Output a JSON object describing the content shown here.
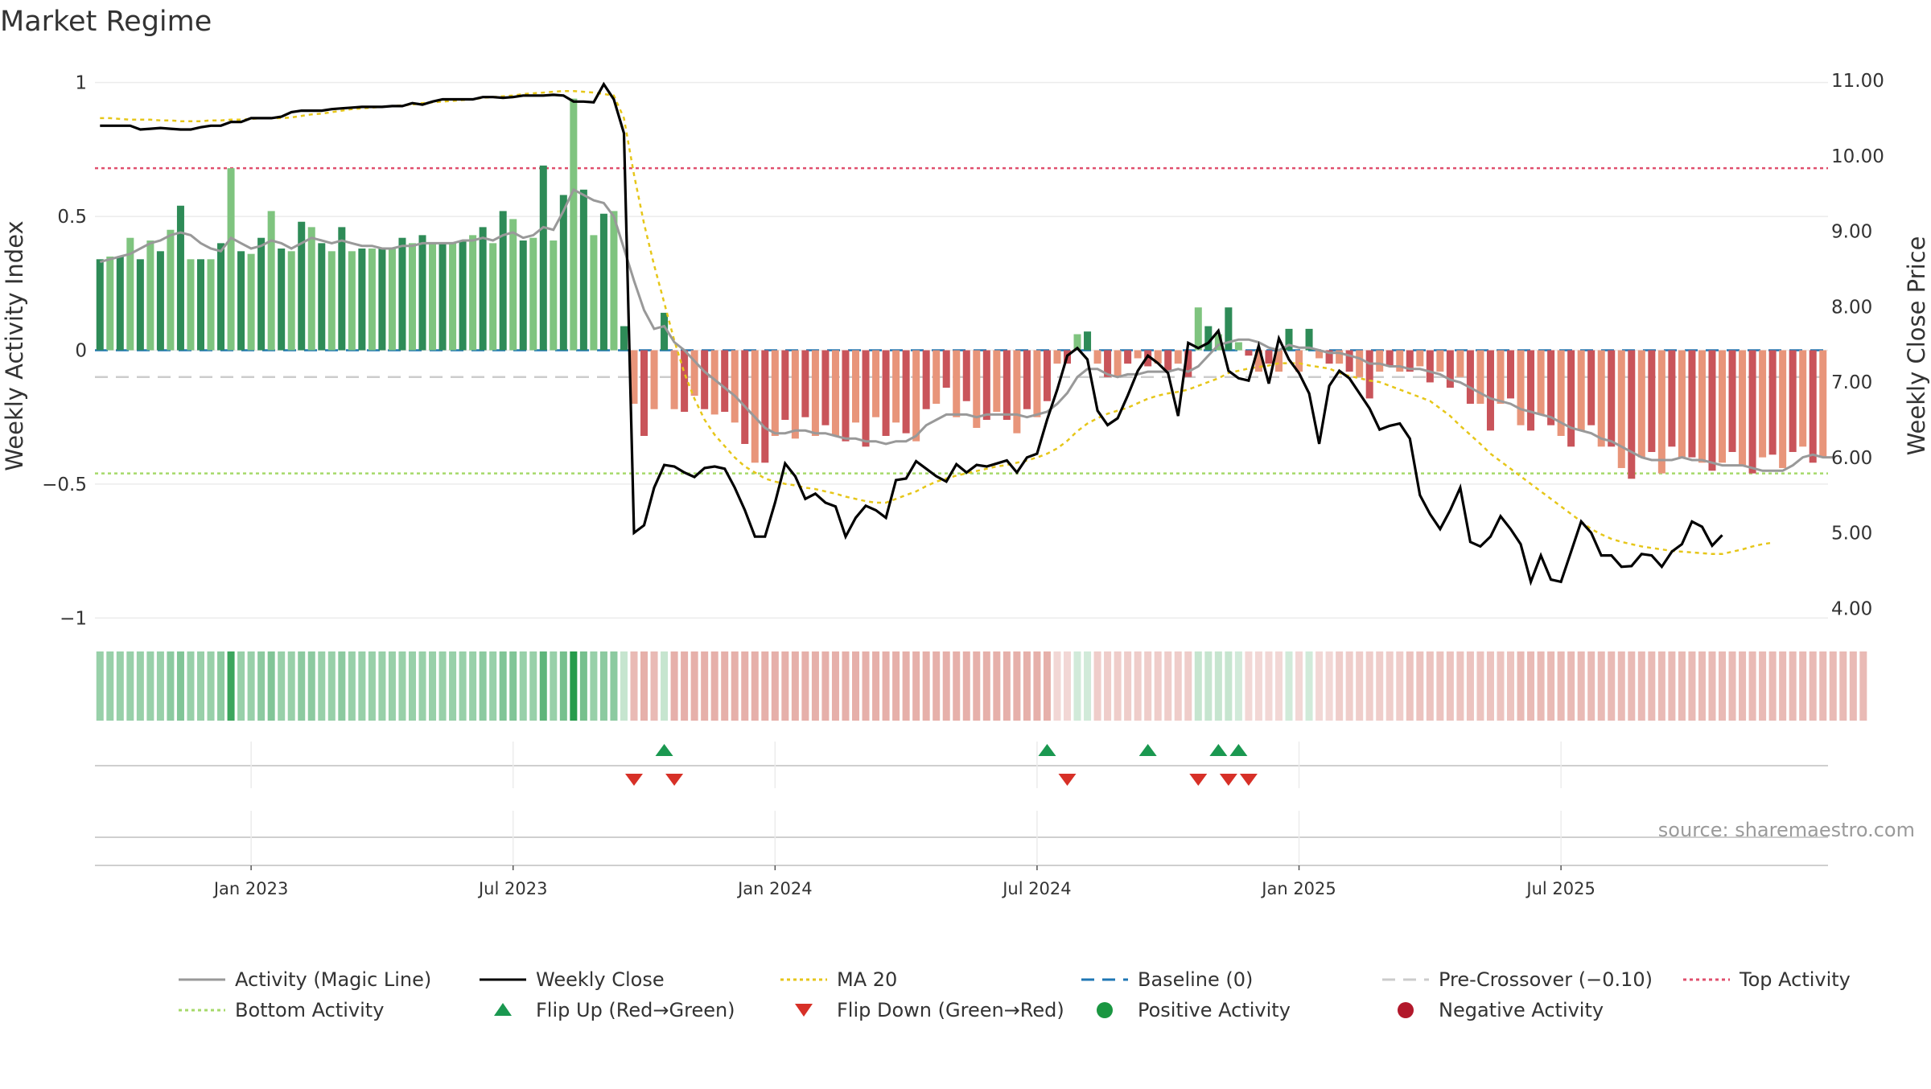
{
  "chart_data": {
    "type": "bar",
    "title": "Market Regime",
    "y_left_label": "Weekly Activity Index",
    "y_right_label": "Weekly Close Price",
    "y_left_ticks": [
      {
        "value": 1,
        "label": "1"
      },
      {
        "value": 0.5,
        "label": "0.5"
      },
      {
        "value": 0,
        "label": "0"
      },
      {
        "value": -0.5,
        "label": "−0.5"
      },
      {
        "value": -1,
        "label": "−1"
      }
    ],
    "y_left_range": [
      -1.02,
      1.05
    ],
    "y_right_ticks": [
      "11.00",
      "10.00",
      "9.00",
      "8.00",
      "7.00",
      "6.00",
      "5.00",
      "4.00"
    ],
    "y_right_range": [
      3.8,
      11.15
    ],
    "x_ticks": [
      {
        "label": "Jan 2023",
        "week": 15
      },
      {
        "label": "Jul 2023",
        "week": 41
      },
      {
        "label": "Jan 2024",
        "week": 67
      },
      {
        "label": "Jul 2024",
        "week": 93
      },
      {
        "label": "Jan 2025",
        "week": 119
      },
      {
        "label": "Jul 2025",
        "week": 145
      }
    ],
    "reference_lines": {
      "top_activity": 0.68,
      "bottom_activity": -0.46,
      "baseline": 0,
      "pre_crossover": -0.1
    },
    "activity": [
      0.34,
      0.35,
      0.35,
      0.42,
      0.34,
      0.41,
      0.37,
      0.45,
      0.54,
      0.34,
      0.34,
      0.34,
      0.4,
      0.68,
      0.37,
      0.36,
      0.42,
      0.52,
      0.38,
      0.37,
      0.48,
      0.46,
      0.4,
      0.37,
      0.46,
      0.37,
      0.38,
      0.38,
      0.38,
      0.38,
      0.42,
      0.4,
      0.43,
      0.4,
      0.4,
      0.4,
      0.41,
      0.43,
      0.46,
      0.4,
      0.52,
      0.49,
      0.41,
      0.42,
      0.69,
      0.41,
      0.58,
      0.94,
      0.6,
      0.43,
      0.51,
      0.52,
      0.09,
      -0.2,
      -0.32,
      -0.22,
      0.14,
      -0.22,
      -0.23,
      -0.17,
      -0.22,
      -0.24,
      -0.23,
      -0.27,
      -0.35,
      -0.42,
      -0.42,
      -0.32,
      -0.26,
      -0.33,
      -0.25,
      -0.32,
      -0.28,
      -0.32,
      -0.34,
      -0.27,
      -0.36,
      -0.25,
      -0.32,
      -0.27,
      -0.31,
      -0.34,
      -0.22,
      -0.2,
      -0.14,
      -0.25,
      -0.19,
      -0.29,
      -0.26,
      -0.23,
      -0.26,
      -0.31,
      -0.22,
      -0.25,
      -0.19,
      -0.05,
      -0.05,
      0.06,
      0.07,
      -0.05,
      -0.1,
      -0.1,
      -0.05,
      -0.03,
      -0.06,
      -0.05,
      -0.08,
      -0.05,
      -0.1,
      0.16,
      0.09,
      0.06,
      0.16,
      0.03,
      -0.02,
      -0.08,
      -0.05,
      -0.08,
      0.08,
      -0.08,
      0.08,
      -0.03,
      -0.05,
      -0.05,
      -0.08,
      -0.1,
      -0.18,
      -0.08,
      -0.06,
      -0.08,
      -0.08,
      -0.06,
      -0.12,
      -0.08,
      -0.14,
      -0.1,
      -0.2,
      -0.2,
      -0.3,
      -0.2,
      -0.18,
      -0.28,
      -0.3,
      -0.24,
      -0.28,
      -0.32,
      -0.36,
      -0.3,
      -0.28,
      -0.36,
      -0.36,
      -0.44,
      -0.48,
      -0.4,
      -0.38,
      -0.46,
      -0.36,
      -0.4,
      -0.4,
      -0.42,
      -0.45,
      -0.42,
      -0.38,
      -0.43,
      -0.46,
      -0.4,
      -0.39,
      -0.44,
      -0.38,
      -0.36,
      -0.42,
      -0.4
    ],
    "activity_line": [
      0.33,
      0.34,
      0.35,
      0.36,
      0.38,
      0.4,
      0.41,
      0.43,
      0.44,
      0.43,
      0.4,
      0.38,
      0.37,
      0.42,
      0.4,
      0.38,
      0.39,
      0.41,
      0.4,
      0.38,
      0.4,
      0.42,
      0.41,
      0.4,
      0.41,
      0.4,
      0.39,
      0.39,
      0.38,
      0.38,
      0.39,
      0.39,
      0.4,
      0.4,
      0.4,
      0.4,
      0.41,
      0.41,
      0.42,
      0.41,
      0.43,
      0.44,
      0.42,
      0.43,
      0.46,
      0.45,
      0.52,
      0.6,
      0.58,
      0.56,
      0.55,
      0.5,
      0.38,
      0.26,
      0.15,
      0.08,
      0.09,
      0.03,
      0.0,
      -0.04,
      -0.08,
      -0.11,
      -0.14,
      -0.17,
      -0.21,
      -0.25,
      -0.29,
      -0.31,
      -0.31,
      -0.3,
      -0.3,
      -0.31,
      -0.31,
      -0.32,
      -0.33,
      -0.33,
      -0.34,
      -0.34,
      -0.35,
      -0.34,
      -0.34,
      -0.32,
      -0.28,
      -0.26,
      -0.24,
      -0.24,
      -0.24,
      -0.25,
      -0.24,
      -0.24,
      -0.24,
      -0.24,
      -0.25,
      -0.24,
      -0.23,
      -0.2,
      -0.16,
      -0.1,
      -0.07,
      -0.07,
      -0.09,
      -0.1,
      -0.09,
      -0.09,
      -0.08,
      -0.08,
      -0.08,
      -0.07,
      -0.08,
      -0.06,
      -0.02,
      0.02,
      0.03,
      0.04,
      0.04,
      0.03,
      0.01,
      0.0,
      0.02,
      0.01,
      0.01,
      0.0,
      -0.01,
      -0.01,
      -0.02,
      -0.03,
      -0.05,
      -0.05,
      -0.06,
      -0.06,
      -0.07,
      -0.07,
      -0.08,
      -0.09,
      -0.11,
      -0.12,
      -0.14,
      -0.16,
      -0.18,
      -0.19,
      -0.2,
      -0.22,
      -0.23,
      -0.24,
      -0.25,
      -0.27,
      -0.29,
      -0.3,
      -0.31,
      -0.33,
      -0.34,
      -0.36,
      -0.38,
      -0.4,
      -0.41,
      -0.41,
      -0.41,
      -0.4,
      -0.41,
      -0.41,
      -0.42,
      -0.43,
      -0.43,
      -0.43,
      -0.44,
      -0.45,
      -0.45,
      -0.45,
      -0.43,
      -0.4,
      -0.39,
      -0.4,
      -0.4
    ],
    "weekly_close": [
      10.4,
      10.4,
      10.4,
      10.4,
      10.35,
      10.36,
      10.37,
      10.36,
      10.35,
      10.35,
      10.38,
      10.4,
      10.4,
      10.45,
      10.45,
      10.5,
      10.5,
      10.5,
      10.52,
      10.58,
      10.6,
      10.6,
      10.6,
      10.62,
      10.63,
      10.64,
      10.65,
      10.65,
      10.65,
      10.66,
      10.66,
      10.7,
      10.68,
      10.72,
      10.75,
      10.75,
      10.75,
      10.75,
      10.78,
      10.78,
      10.77,
      10.78,
      10.8,
      10.8,
      10.8,
      10.81,
      10.8,
      10.72,
      10.72,
      10.71,
      10.95,
      10.75,
      10.3,
      5.0,
      5.1,
      5.6,
      5.9,
      5.88,
      5.8,
      5.74,
      5.86,
      5.88,
      5.85,
      5.6,
      5.3,
      4.95,
      4.95,
      5.4,
      5.92,
      5.75,
      5.45,
      5.52,
      5.4,
      5.35,
      4.95,
      5.2,
      5.36,
      5.3,
      5.2,
      5.7,
      5.72,
      5.95,
      5.85,
      5.75,
      5.68,
      5.91,
      5.8,
      5.9,
      5.88,
      5.92,
      5.96,
      5.8,
      6.0,
      6.05,
      6.5,
      6.9,
      7.35,
      7.45,
      7.3,
      6.62,
      6.43,
      6.52,
      6.82,
      7.15,
      7.35,
      7.25,
      7.12,
      6.55,
      7.52,
      7.45,
      7.52,
      7.68,
      7.15,
      7.05,
      7.02,
      7.48,
      6.98,
      7.58,
      7.3,
      7.12,
      6.85,
      6.18,
      6.95,
      7.15,
      7.05,
      6.85,
      6.65,
      6.37,
      6.42,
      6.45,
      6.25,
      5.5,
      5.25,
      5.05,
      5.3,
      5.6,
      4.88,
      4.82,
      4.95,
      5.22,
      5.05,
      4.85,
      4.35,
      4.7,
      4.38,
      4.35,
      4.75,
      5.15,
      5.0,
      4.7,
      4.7,
      4.55,
      4.56,
      4.72,
      4.7,
      4.55,
      4.75,
      4.85,
      5.15,
      5.08,
      4.83,
      4.97
    ],
    "ma20": [
      10.5,
      10.5,
      10.49,
      10.48,
      10.48,
      10.48,
      10.47,
      10.47,
      10.46,
      10.46,
      10.46,
      10.47,
      10.47,
      10.48,
      10.48,
      10.49,
      10.5,
      10.5,
      10.5,
      10.51,
      10.53,
      10.55,
      10.56,
      10.58,
      10.6,
      10.62,
      10.63,
      10.64,
      10.65,
      10.66,
      10.67,
      10.68,
      10.7,
      10.71,
      10.72,
      10.73,
      10.74,
      10.75,
      10.77,
      10.78,
      10.79,
      10.8,
      10.82,
      10.83,
      10.84,
      10.85,
      10.86,
      10.86,
      10.85,
      10.84,
      10.82,
      10.8,
      10.5,
      9.75,
      9.1,
      8.55,
      8.05,
      7.55,
      7.12,
      6.78,
      6.5,
      6.3,
      6.15,
      6.0,
      5.88,
      5.8,
      5.72,
      5.68,
      5.65,
      5.63,
      5.6,
      5.58,
      5.55,
      5.52,
      5.48,
      5.45,
      5.42,
      5.4,
      5.4,
      5.45,
      5.5,
      5.55,
      5.62,
      5.68,
      5.72,
      5.76,
      5.79,
      5.82,
      5.85,
      5.88,
      5.9,
      5.93,
      5.96,
      6.0,
      6.05,
      6.12,
      6.22,
      6.35,
      6.45,
      6.52,
      6.58,
      6.62,
      6.66,
      6.72,
      6.78,
      6.82,
      6.85,
      6.87,
      6.9,
      6.95,
      7.0,
      7.05,
      7.12,
      7.15,
      7.18,
      7.2,
      7.22,
      7.25,
      7.25,
      7.25,
      7.22,
      7.2,
      7.18,
      7.12,
      7.08,
      7.05,
      7.02,
      7.0,
      6.95,
      6.9,
      6.85,
      6.8,
      6.75,
      6.65,
      6.55,
      6.42,
      6.3,
      6.18,
      6.05,
      5.95,
      5.85,
      5.75,
      5.65,
      5.55,
      5.45,
      5.35,
      5.25,
      5.15,
      5.05,
      4.98,
      4.92,
      4.88,
      4.85,
      4.82,
      4.8,
      4.78,
      4.76,
      4.75,
      4.74,
      4.73,
      4.72,
      4.72,
      4.75,
      4.78,
      4.82,
      4.85,
      4.87
    ],
    "regime_strip_intensity": [
      0.45,
      0.45,
      0.45,
      0.45,
      0.45,
      0.45,
      0.45,
      0.5,
      0.55,
      0.45,
      0.45,
      0.45,
      0.5,
      0.85,
      0.45,
      0.45,
      0.5,
      0.55,
      0.45,
      0.45,
      0.5,
      0.5,
      0.45,
      0.45,
      0.5,
      0.45,
      0.45,
      0.45,
      0.45,
      0.45,
      0.45,
      0.45,
      0.45,
      0.45,
      0.45,
      0.45,
      0.45,
      0.45,
      0.5,
      0.45,
      0.55,
      0.55,
      0.45,
      0.45,
      0.7,
      0.45,
      0.6,
      0.95,
      0.6,
      0.45,
      0.5,
      0.5,
      0.25,
      0.35,
      0.4,
      0.35,
      0.25,
      0.4,
      0.4,
      0.4,
      0.4,
      0.4,
      0.4,
      0.4,
      0.4,
      0.4,
      0.4,
      0.4,
      0.4,
      0.4,
      0.4,
      0.4,
      0.4,
      0.4,
      0.4,
      0.4,
      0.4,
      0.4,
      0.4,
      0.4,
      0.4,
      0.4,
      0.4,
      0.4,
      0.4,
      0.4,
      0.4,
      0.4,
      0.4,
      0.4,
      0.4,
      0.4,
      0.4,
      0.4,
      0.4,
      0.2,
      0.2,
      0.2,
      0.2,
      0.25,
      0.25,
      0.25,
      0.25,
      0.25,
      0.25,
      0.25,
      0.25,
      0.25,
      0.25,
      0.25,
      0.25,
      0.25,
      0.25,
      0.2,
      0.2,
      0.2,
      0.2,
      0.2,
      0.2,
      0.2,
      0.2,
      0.2,
      0.2,
      0.25,
      0.25,
      0.25,
      0.25,
      0.25,
      0.25,
      0.25,
      0.3,
      0.3,
      0.3,
      0.3,
      0.3,
      0.3,
      0.3,
      0.3,
      0.3,
      0.3,
      0.3,
      0.35,
      0.35,
      0.35,
      0.35,
      0.35,
      0.35,
      0.35,
      0.35,
      0.35,
      0.35,
      0.35,
      0.35,
      0.35,
      0.35,
      0.35,
      0.35,
      0.35,
      0.35,
      0.35,
      0.35,
      0.35,
      0.35,
      0.35,
      0.35,
      0.35,
      0.35,
      0.35,
      0.35,
      0.35,
      0.35,
      0.35,
      0.35,
      0.35,
      0.35,
      0.35
    ],
    "flip_up_weeks": [
      56,
      94,
      104,
      111,
      113
    ],
    "flip_down_weeks": [
      53,
      57,
      96,
      109,
      112,
      114
    ],
    "legend": [
      {
        "label": "Activity (Magic Line)",
        "style": "solid",
        "color": "#999999"
      },
      {
        "label": "Weekly Close",
        "style": "solid",
        "color": "#000000"
      },
      {
        "label": "MA 20",
        "style": "dotted",
        "color": "#e6c619"
      },
      {
        "label": "Baseline (0)",
        "style": "dashed",
        "color": "#1f77b4"
      },
      {
        "label": "Pre-Crossover (−0.10)",
        "style": "dashed",
        "color": "#cccccc"
      },
      {
        "label": "Top Activity",
        "style": "dotted",
        "color": "#e0506e"
      },
      {
        "label": "Bottom Activity",
        "style": "dotted",
        "color": "#a6d96a"
      },
      {
        "label": "Flip Up (Red→Green)",
        "style": "triangle-up",
        "color": "#1a9850"
      },
      {
        "label": "Flip Down (Green→Red)",
        "style": "triangle-down",
        "color": "#d73027"
      },
      {
        "label": "Positive Activity",
        "style": "circle",
        "color": "#1a9641"
      },
      {
        "label": "Negative Activity",
        "style": "circle",
        "color": "#b2182b"
      }
    ],
    "source": "source: sharemaestro.com",
    "colors": {
      "pos_dark": "#2e8b57",
      "pos_light": "#7fc47f",
      "neg_dark": "#c9545a",
      "neg_light": "#e8957a",
      "strip_pos": "#1a9641",
      "strip_neg": "#c0392b"
    }
  }
}
